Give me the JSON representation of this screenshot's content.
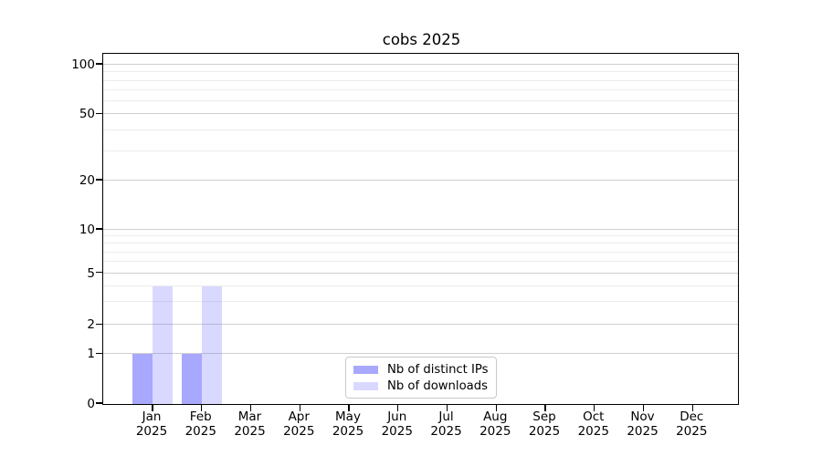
{
  "chart_data": {
    "type": "bar",
    "title": "cobs 2025",
    "categories": [
      "Jan",
      "Feb",
      "Mar",
      "Apr",
      "May",
      "Jun",
      "Jul",
      "Aug",
      "Sep",
      "Oct",
      "Nov",
      "Dec"
    ],
    "x_sub_label": "2025",
    "series": [
      {
        "name": "Nb of distinct IPs",
        "color": "rgba(102,102,255,0.57)",
        "values": [
          1,
          1,
          0,
          0,
          0,
          0,
          0,
          0,
          0,
          0,
          0,
          0
        ]
      },
      {
        "name": "Nb of downloads",
        "color": "rgba(102,102,255,0.25)",
        "values": [
          4,
          4,
          0,
          0,
          0,
          0,
          0,
          0,
          0,
          0,
          0,
          0
        ]
      }
    ],
    "yscale": "log-like (0,1 then log decades)",
    "ylim": [
      0,
      110
    ],
    "y_ticks": [
      0,
      1,
      2,
      5,
      10,
      20,
      50,
      100
    ],
    "y_minor_ticks": [
      3,
      4,
      6,
      7,
      8,
      9,
      30,
      40,
      60,
      70,
      80,
      90
    ],
    "grid": true,
    "legend_position": "lower center",
    "colors": {
      "bar_distinct_ips": "#a8a8f8",
      "bar_downloads": "#d9d9fa",
      "grid_major": "#cfcfcf",
      "grid_minor": "#ececec",
      "spine": "#000000",
      "text": "#000000"
    }
  }
}
